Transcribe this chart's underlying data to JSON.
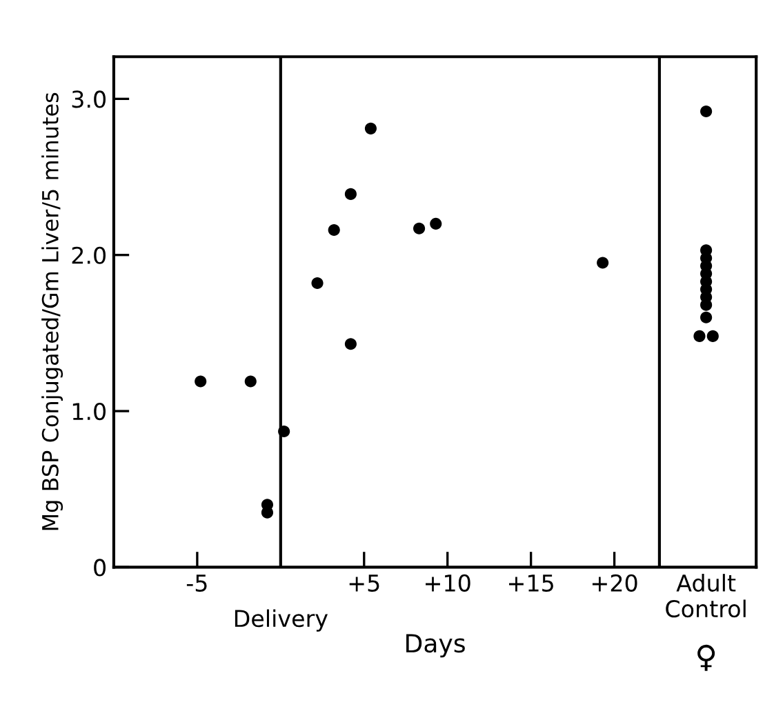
{
  "chart_data": {
    "type": "scatter",
    "xlabel": "Days",
    "ylabel": "Mg BSP Conjugated/Gm Liver/5 minutes",
    "x": [
      -4.8,
      -1.8,
      -0.8,
      -0.8,
      0.2,
      2.2,
      3.2,
      4.2,
      4.2,
      5.4,
      8.3,
      9.3,
      19.3,
      25.5,
      25.5,
      25.5,
      25.5,
      25.5,
      25.5,
      25.5,
      25.5,
      25.5,
      25.5,
      25.1,
      25.9
    ],
    "values": [
      1.19,
      1.19,
      0.4,
      0.35,
      0.87,
      1.82,
      2.16,
      2.39,
      1.43,
      2.81,
      2.17,
      2.2,
      1.95,
      2.92,
      2.03,
      1.98,
      1.93,
      1.88,
      1.83,
      1.78,
      1.73,
      1.68,
      1.6,
      1.48,
      1.48
    ],
    "color": "#000000",
    "marker": "circle",
    "xlim": [
      -10,
      28.5
    ],
    "ylim": [
      0,
      3.27
    ],
    "xticks": [
      {
        "value": -5,
        "label": "-5"
      },
      {
        "value": 5,
        "label": "+5"
      },
      {
        "value": 10,
        "label": "+10"
      },
      {
        "value": 15,
        "label": "+15"
      },
      {
        "value": 20,
        "label": "+20"
      },
      {
        "value": 25.5,
        "label": "Adult\nControl"
      }
    ],
    "yticks": [
      {
        "value": 0,
        "label": "0"
      },
      {
        "value": 1,
        "label": "1.0"
      },
      {
        "value": 2,
        "label": "2.0"
      },
      {
        "value": 3,
        "label": "3.0"
      }
    ],
    "ref_lines": [
      {
        "axis": "x",
        "value": 0,
        "label": "Delivery",
        "color": "#000000"
      },
      {
        "axis": "x",
        "value": 22.7,
        "label": null,
        "color": "#000000"
      }
    ],
    "annotations": [
      "♀"
    ],
    "grid": false
  }
}
